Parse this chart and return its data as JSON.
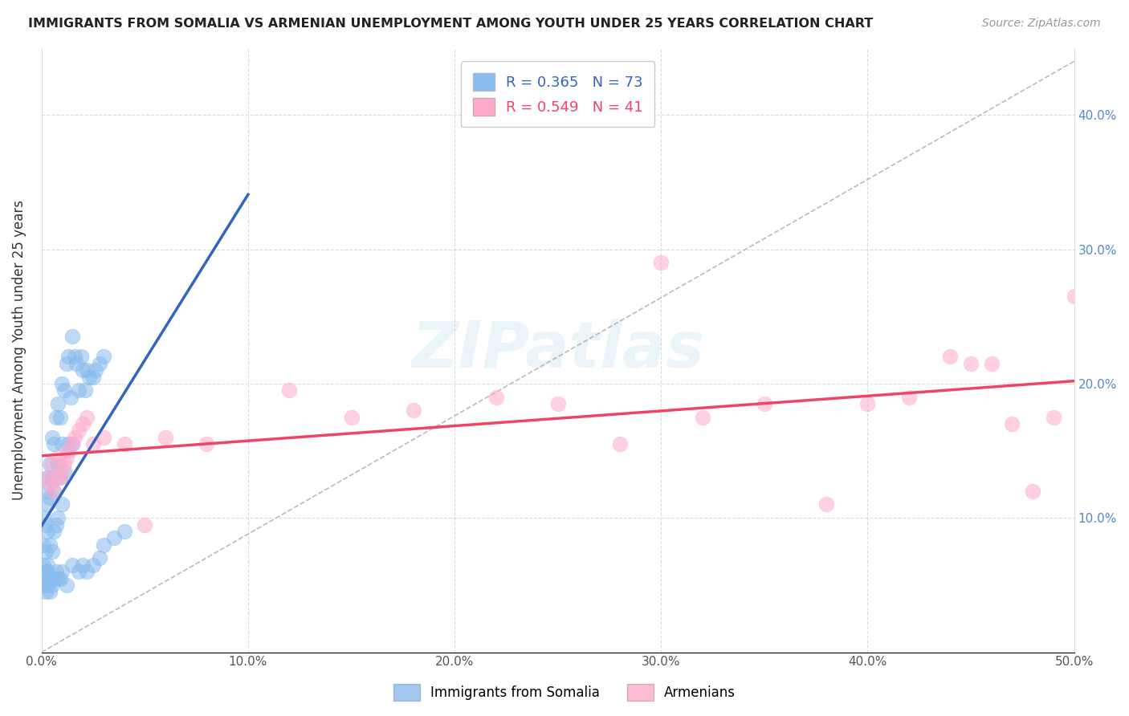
{
  "title": "IMMIGRANTS FROM SOMALIA VS ARMENIAN UNEMPLOYMENT AMONG YOUTH UNDER 25 YEARS CORRELATION CHART",
  "source": "Source: ZipAtlas.com",
  "ylabel": "Unemployment Among Youth under 25 years",
  "legend_label1": "Immigrants from Somalia",
  "legend_label2": "Armenians",
  "r1": 0.365,
  "n1": 73,
  "r2": 0.549,
  "n2": 41,
  "xlim": [
    0.0,
    0.5
  ],
  "ylim": [
    0.0,
    0.45
  ],
  "xticks": [
    0.0,
    0.1,
    0.2,
    0.3,
    0.4,
    0.5
  ],
  "yticks": [
    0.0,
    0.1,
    0.2,
    0.3,
    0.4
  ],
  "xticklabels": [
    "0.0%",
    "10.0%",
    "20.0%",
    "30.0%",
    "40.0%",
    "50.0%"
  ],
  "yticklabels_right": [
    "",
    "10.0%",
    "20.0%",
    "30.0%",
    "40.0%"
  ],
  "color_blue": "#88BBEE",
  "color_pink": "#FFAACC",
  "color_blue_line": "#3366BB",
  "color_pink_line": "#EE4466",
  "color_dashed": "#AAAAAA",
  "background": "#FFFFFF",
  "watermark": "ZIPatlas",
  "somalia_x": [
    0.001,
    0.001,
    0.001,
    0.002,
    0.002,
    0.002,
    0.002,
    0.003,
    0.003,
    0.003,
    0.003,
    0.004,
    0.004,
    0.004,
    0.005,
    0.005,
    0.005,
    0.006,
    0.006,
    0.006,
    0.007,
    0.007,
    0.008,
    0.008,
    0.008,
    0.009,
    0.009,
    0.01,
    0.01,
    0.01,
    0.011,
    0.011,
    0.012,
    0.013,
    0.013,
    0.014,
    0.015,
    0.015,
    0.016,
    0.017,
    0.018,
    0.019,
    0.02,
    0.021,
    0.022,
    0.023,
    0.025,
    0.026,
    0.028,
    0.03,
    0.001,
    0.002,
    0.002,
    0.003,
    0.003,
    0.004,
    0.004,
    0.005,
    0.006,
    0.007,
    0.008,
    0.009,
    0.01,
    0.012,
    0.015,
    0.018,
    0.02,
    0.022,
    0.025,
    0.028,
    0.03,
    0.035,
    0.04
  ],
  "somalia_y": [
    0.1,
    0.08,
    0.065,
    0.12,
    0.095,
    0.075,
    0.06,
    0.13,
    0.11,
    0.09,
    0.065,
    0.14,
    0.115,
    0.08,
    0.16,
    0.13,
    0.075,
    0.155,
    0.12,
    0.09,
    0.175,
    0.095,
    0.185,
    0.14,
    0.1,
    0.175,
    0.13,
    0.2,
    0.155,
    0.11,
    0.195,
    0.135,
    0.215,
    0.22,
    0.155,
    0.19,
    0.235,
    0.155,
    0.22,
    0.215,
    0.195,
    0.22,
    0.21,
    0.195,
    0.21,
    0.205,
    0.205,
    0.21,
    0.215,
    0.22,
    0.05,
    0.055,
    0.045,
    0.06,
    0.05,
    0.055,
    0.045,
    0.05,
    0.055,
    0.06,
    0.055,
    0.055,
    0.06,
    0.05,
    0.065,
    0.06,
    0.065,
    0.06,
    0.065,
    0.07,
    0.08,
    0.085,
    0.09
  ],
  "armenia_x": [
    0.003,
    0.004,
    0.005,
    0.006,
    0.007,
    0.008,
    0.009,
    0.01,
    0.011,
    0.012,
    0.013,
    0.015,
    0.016,
    0.018,
    0.02,
    0.022,
    0.025,
    0.03,
    0.04,
    0.05,
    0.06,
    0.08,
    0.12,
    0.15,
    0.18,
    0.22,
    0.25,
    0.28,
    0.3,
    0.32,
    0.35,
    0.38,
    0.4,
    0.42,
    0.44,
    0.45,
    0.46,
    0.47,
    0.48,
    0.49,
    0.5
  ],
  "armenia_y": [
    0.13,
    0.125,
    0.14,
    0.12,
    0.13,
    0.145,
    0.13,
    0.135,
    0.14,
    0.145,
    0.15,
    0.155,
    0.16,
    0.165,
    0.17,
    0.175,
    0.155,
    0.16,
    0.155,
    0.095,
    0.16,
    0.155,
    0.195,
    0.175,
    0.18,
    0.19,
    0.185,
    0.155,
    0.29,
    0.175,
    0.185,
    0.11,
    0.185,
    0.19,
    0.22,
    0.215,
    0.215,
    0.17,
    0.12,
    0.175,
    0.265
  ]
}
